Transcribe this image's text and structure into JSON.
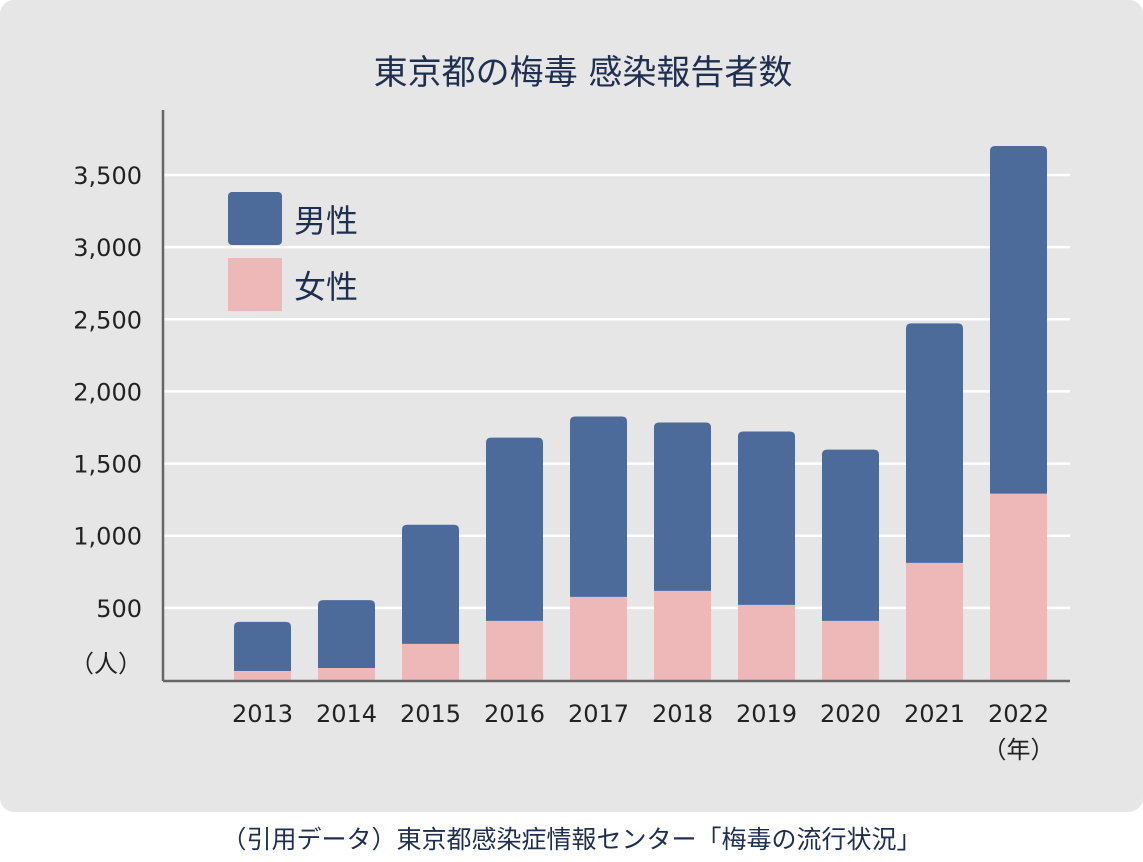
{
  "chart_data": {
    "type": "bar",
    "stacked": true,
    "title": "東京都の梅毒 感染報告者数",
    "xlabel": "（年）",
    "ylabel": "（人）",
    "categories": [
      "2013",
      "2014",
      "2015",
      "2016",
      "2017",
      "2018",
      "2019",
      "2020",
      "2021",
      "2022"
    ],
    "series": [
      {
        "name": "女性",
        "color": "#eeb7b8",
        "values": [
          62,
          83,
          250,
          410,
          576,
          618,
          521,
          410,
          812,
          1292
        ]
      },
      {
        "name": "男性",
        "color": "#4d6b9a",
        "values": [
          341,
          471,
          826,
          1270,
          1250,
          1167,
          1201,
          1187,
          1660,
          2409
        ]
      }
    ],
    "legend_order": [
      "男性",
      "女性"
    ],
    "ylim": [
      0,
      3750
    ],
    "yticks": [
      500,
      1000,
      1500,
      2000,
      2500,
      3000,
      3500
    ],
    "ytick_labels": [
      "500",
      "1,000",
      "1,500",
      "2,000",
      "2,500",
      "3,000",
      "3,500"
    ],
    "grid": true,
    "legend_position": "top-left"
  },
  "source": "（引用データ）東京都感染症情報センター「梅毒の流行状況」"
}
